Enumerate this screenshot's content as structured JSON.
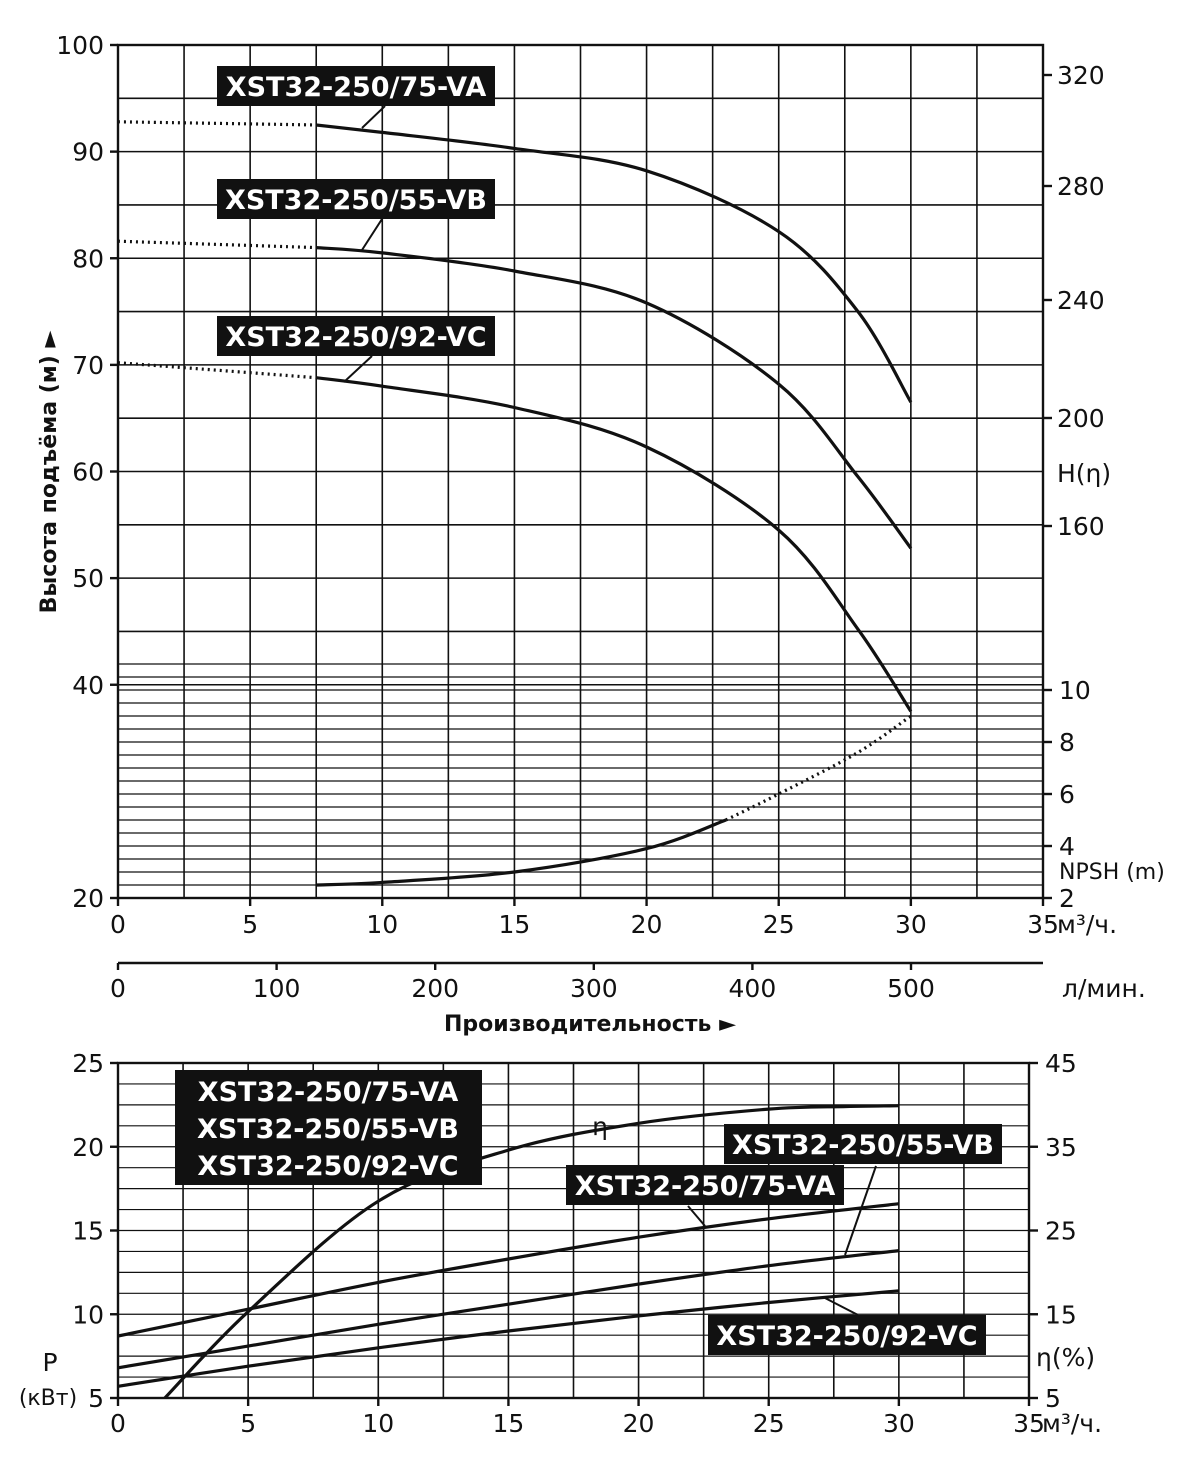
{
  "chart_data": [
    {
      "type": "line",
      "x": [
        0,
        5,
        10,
        15,
        20,
        25,
        30
      ],
      "xlabel": "Производительность",
      "xunit": "м³/ч.",
      "xlim": [
        0,
        35
      ],
      "x_ticks": [
        "0",
        "5",
        "10",
        "15",
        "20",
        "25",
        "30",
        "35"
      ],
      "x2unit": "л/мин.",
      "x2_ticks": [
        "0",
        "100",
        "200",
        "300",
        "400",
        "500"
      ],
      "ylabel": "Высота подъёма (м)",
      "y_ticks": [
        "20",
        "40",
        "50",
        "60",
        "70",
        "80",
        "90",
        "100"
      ],
      "ylim": [
        20,
        100
      ],
      "y2_ticks_head": [
        "160",
        "200",
        "240",
        "280",
        "320"
      ],
      "y2_label_head": "H(η)",
      "y2_ticks_npsh": [
        "2",
        "4",
        "6",
        "8",
        "10"
      ],
      "y2_label_npsh": "NPSH (m)",
      "arrow": "►",
      "grid": true,
      "series": [
        {
          "name": "XST32-250/75-VA",
          "x": [
            0,
            7.5,
            10,
            15,
            20,
            25,
            28,
            30
          ],
          "values": [
            92.8,
            92.5,
            91.8,
            90.3,
            88.2,
            82.5,
            75.0,
            66.5
          ]
        },
        {
          "name": "XST32-250/55-VB",
          "x": [
            0,
            7.5,
            10,
            15,
            20,
            25,
            28,
            30
          ],
          "values": [
            81.6,
            81.0,
            80.5,
            78.8,
            75.8,
            68.2,
            59.5,
            52.8
          ]
        },
        {
          "name": "XST32-250/92-VC",
          "x": [
            0,
            7.5,
            10,
            15,
            20,
            25,
            28,
            30
          ],
          "values": [
            70.2,
            68.8,
            68.0,
            66.0,
            62.3,
            54.5,
            45.2,
            37.5
          ]
        },
        {
          "name": "NPSH (m)",
          "x": [
            7.5,
            10,
            15,
            20,
            23,
            25,
            28,
            30
          ],
          "values": [
            2.5,
            2.6,
            3.0,
            3.9,
            5.0,
            6.0,
            7.6,
            9.0
          ]
        }
      ]
    },
    {
      "type": "line",
      "x": [
        0,
        5,
        10,
        15,
        20,
        25,
        30
      ],
      "xunit": "м³/ч.",
      "xlim": [
        0,
        35
      ],
      "x_ticks": [
        "0",
        "5",
        "10",
        "15",
        "20",
        "25",
        "30",
        "35"
      ],
      "ylabel": "P (кВт)",
      "ylabel_lines": [
        "P",
        "(кВт)"
      ],
      "y_ticks": [
        "5",
        "10",
        "15",
        "20",
        "25"
      ],
      "ylim": [
        5,
        25
      ],
      "y2label": "η(%)",
      "y2_ticks": [
        "5",
        "15",
        "25",
        "35",
        "45"
      ],
      "y2lim": [
        5,
        45
      ],
      "eta_symbol": "η",
      "grid": true,
      "legend_block": [
        "XST32-250/75-VA",
        "XST32-250/55-VB",
        "XST32-250/92-VC"
      ],
      "series": [
        {
          "name": "XST32-250/75-VA",
          "x": [
            0,
            5,
            10,
            15,
            20,
            25,
            30
          ],
          "values": [
            8.7,
            10.3,
            11.9,
            13.3,
            14.6,
            15.7,
            16.6
          ]
        },
        {
          "name": "XST32-250/55-VB",
          "x": [
            0,
            5,
            10,
            15,
            20,
            25,
            30
          ],
          "values": [
            6.8,
            8.1,
            9.4,
            10.6,
            11.8,
            12.9,
            13.8
          ]
        },
        {
          "name": "XST32-250/92-VC",
          "x": [
            0,
            5,
            10,
            15,
            20,
            25,
            30
          ],
          "values": [
            5.7,
            6.9,
            8.0,
            9.0,
            9.9,
            10.7,
            11.4
          ]
        },
        {
          "name": "η",
          "x": [
            1.8,
            5,
            10,
            15,
            20,
            25,
            28,
            30
          ],
          "values": [
            5.0,
            15.3,
            28.5,
            34.6,
            37.8,
            39.5,
            39.8,
            39.9
          ]
        }
      ]
    }
  ]
}
